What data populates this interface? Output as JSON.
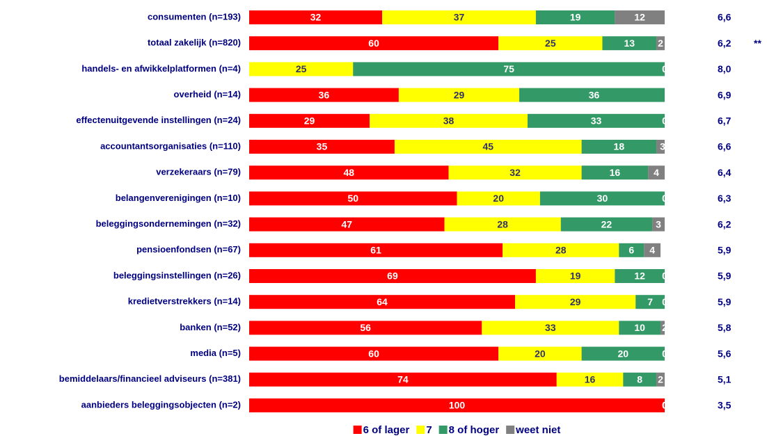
{
  "chart_data": {
    "type": "stacked-bar-horizontal",
    "categories": [
      "consumenten (n=193)",
      "totaal zakelijk (n=820)",
      "handels- en afwikkelplatformen (n=4)",
      "overheid (n=14)",
      "effectenuitgevende instellingen (n=24)",
      "accountantsorganisaties (n=110)",
      "verzekeraars (n=79)",
      "belangenverenigingen (n=10)",
      "beleggingsondernemingen (n=32)",
      "pensioenfondsen (n=67)",
      "beleggingsinstellingen (n=26)",
      "kredietverstrekkers (n=14)",
      "banken (n=52)",
      "media (n=5)",
      "bemiddelaars/financieel adviseurs (n=381)",
      "aanbieders beleggingsobjecten (n=2)"
    ],
    "series": [
      {
        "name": "6 of lager",
        "color": "#ff0000",
        "label_color": "#ffffff",
        "values": [
          32,
          60,
          0,
          36,
          29,
          35,
          48,
          50,
          47,
          61,
          69,
          64,
          56,
          60,
          74,
          100
        ]
      },
      {
        "name": "7",
        "color": "#ffff00",
        "label_color": "#333366",
        "values": [
          37,
          25,
          25,
          29,
          38,
          45,
          32,
          20,
          28,
          28,
          19,
          29,
          33,
          20,
          16,
          0
        ]
      },
      {
        "name": "8 of hoger",
        "color": "#339966",
        "label_color": "#ffffff",
        "values": [
          19,
          13,
          75,
          36,
          33,
          18,
          16,
          30,
          22,
          6,
          12,
          7,
          10,
          20,
          8,
          0
        ]
      },
      {
        "name": "weet niet",
        "color": "#808080",
        "label_color": "#ffffff",
        "values": [
          12,
          2,
          0,
          0,
          0,
          3,
          4,
          0,
          3,
          4,
          0,
          0,
          2,
          0,
          2,
          0
        ]
      }
    ],
    "scores": [
      "6,6",
      "6,2",
      "8,0",
      "6,9",
      "6,7",
      "6,6",
      "6,4",
      "6,3",
      "6,2",
      "5,9",
      "5,9",
      "5,9",
      "5,8",
      "5,6",
      "5,1",
      "3,5"
    ],
    "annotation": {
      "text": "**",
      "category": "totaal zakelijk (n=820)"
    },
    "xlim": [
      0,
      100
    ]
  }
}
